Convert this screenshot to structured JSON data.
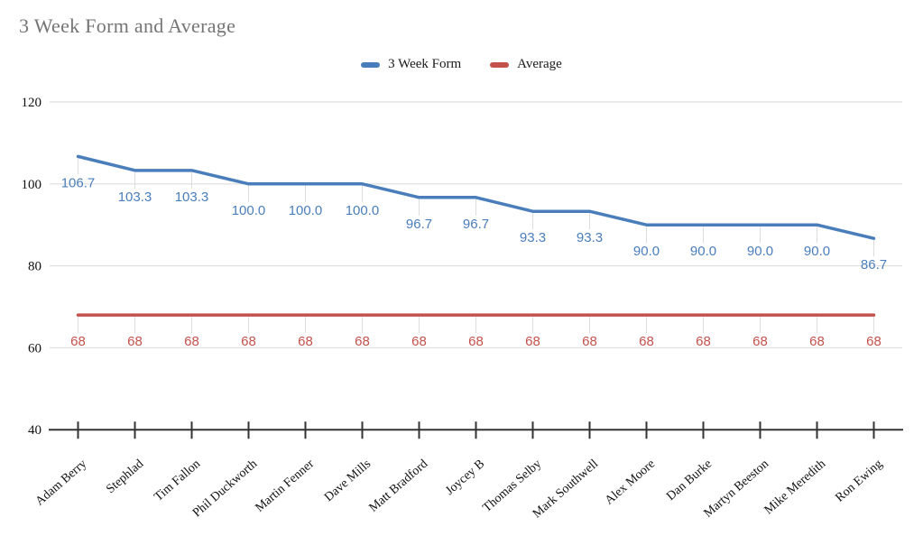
{
  "chart_data": {
    "type": "line",
    "title": "3 Week Form and Average",
    "categories": [
      "Adam Berry",
      "Stephlad",
      "Tim Fallon",
      "Phil Duckworth",
      "Martin Fenner",
      "Dave Mills",
      "Matt Bradford",
      "Joycey B",
      "Thomas Selby",
      "Mark Southwell",
      "Alex Moore",
      "Dan Burke",
      "Martyn Beeston",
      "Mike Meredith",
      "Ron Ewing"
    ],
    "series": [
      {
        "name": "3 Week Form",
        "color": "#4a7ebb",
        "values": [
          106.7,
          103.3,
          103.3,
          100,
          100,
          100,
          96.7,
          96.7,
          93.3,
          93.3,
          90,
          90,
          90,
          90,
          86.7
        ],
        "labels": [
          "106.7",
          "103.3",
          "103.3",
          "100.0",
          "100.0",
          "100.0",
          "96.7",
          "96.7",
          "93.3",
          "93.3",
          "90.0",
          "90.0",
          "90.0",
          "90.0",
          "86.7"
        ]
      },
      {
        "name": "Average",
        "color": "#c4524c",
        "values": [
          68,
          68,
          68,
          68,
          68,
          68,
          68,
          68,
          68,
          68,
          68,
          68,
          68,
          68,
          68
        ],
        "labels": [
          "68",
          "68",
          "68",
          "68",
          "68",
          "68",
          "68",
          "68",
          "68",
          "68",
          "68",
          "68",
          "68",
          "68",
          "68"
        ]
      }
    ],
    "ylim": [
      40,
      120
    ],
    "yticks": [
      40,
      60,
      80,
      100,
      120
    ],
    "grid": true,
    "legend_position": "top",
    "xlabel": "",
    "ylabel": ""
  }
}
